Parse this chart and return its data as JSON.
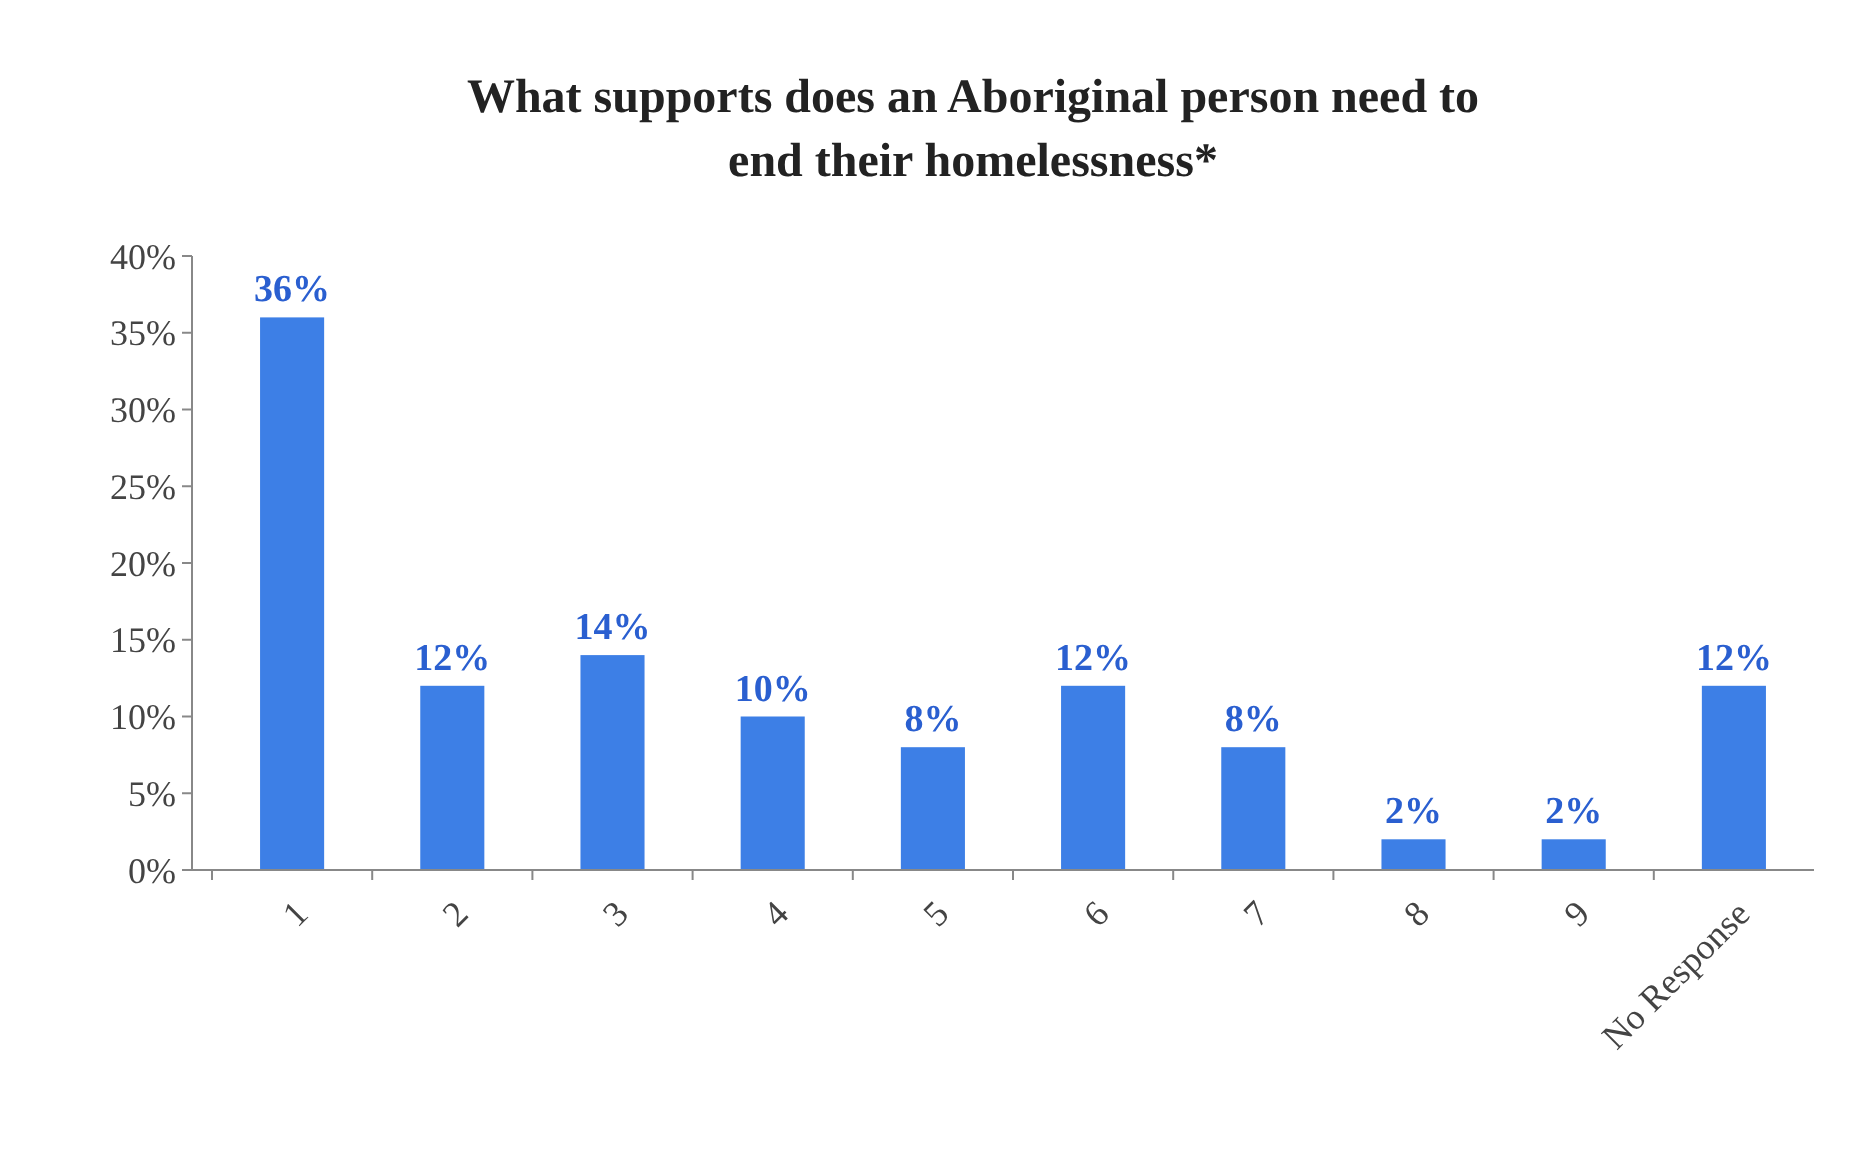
{
  "chart_data": {
    "type": "bar",
    "title": "What supports does an Aboriginal person need to end their homelessness*",
    "categories": [
      "1",
      "2",
      "3",
      "4",
      "5",
      "6",
      "7",
      "8",
      "9",
      "No Response"
    ],
    "values": [
      36,
      12,
      14,
      10,
      8,
      12,
      8,
      2,
      2,
      12
    ],
    "value_labels": [
      "36%",
      "12%",
      "14%",
      "10%",
      "8%",
      "12%",
      "8%",
      "2%",
      "2%",
      "12%"
    ],
    "color": "#3d7fe6",
    "ylim": [
      0,
      40
    ],
    "yticks": [
      {
        "value": 0,
        "label": "0%"
      },
      {
        "value": 5,
        "label": "5%"
      },
      {
        "value": 10,
        "label": "10%"
      },
      {
        "value": 15,
        "label": "15%"
      },
      {
        "value": 20,
        "label": "20%"
      },
      {
        "value": 25,
        "label": "25%"
      },
      {
        "value": 30,
        "label": "30%"
      },
      {
        "value": 35,
        "label": "35%"
      },
      {
        "value": 40,
        "label": "40%"
      }
    ],
    "grid": false
  }
}
